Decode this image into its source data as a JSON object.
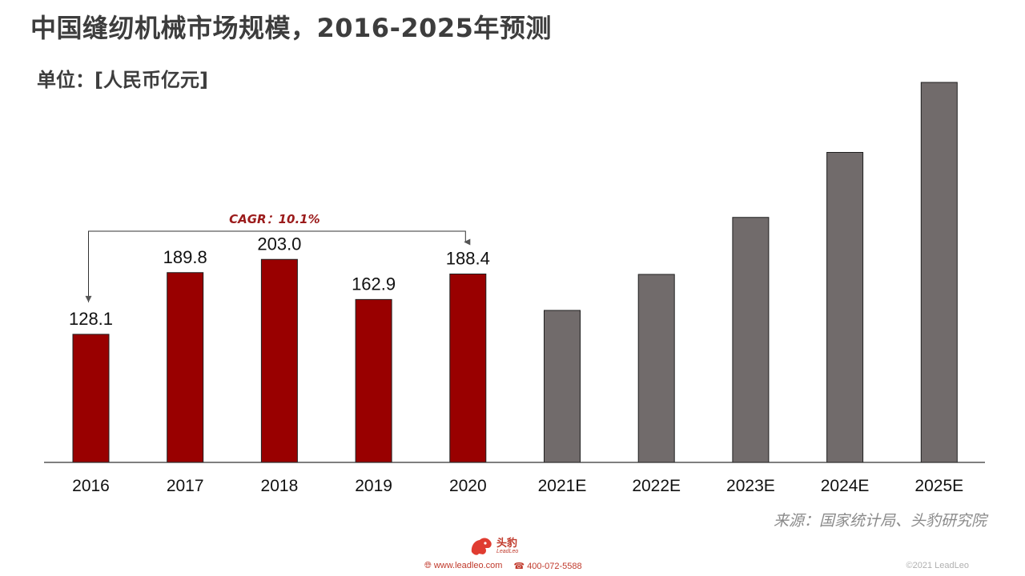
{
  "page": {
    "title": "中国缝纫机械市场规模，2016-2025年预测",
    "unit": "单位：[人民币亿元]",
    "source": "来源：国家统计局、头豹研究院"
  },
  "footer": {
    "brand": "头豹",
    "brand_sub": "LeadLeo",
    "website": "www.leadleo.com",
    "phone": "400-072-5588",
    "copyright": "©2021 LeadLeo",
    "web_icon": "globe-icon",
    "phone_icon": "phone-icon"
  },
  "chart_data": {
    "type": "bar",
    "categories": [
      "2016",
      "2017",
      "2018",
      "2019",
      "2020",
      "2021E",
      "2022E",
      "2023E",
      "2024E",
      "2025E"
    ],
    "values": [
      128.1,
      189.8,
      203.0,
      162.9,
      188.4,
      152.0,
      188.0,
      245.0,
      310.0,
      380.0
    ],
    "data_labels": [
      "128.1",
      "189.8",
      "203.0",
      "162.9",
      "188.4",
      "",
      "",
      "",
      "",
      ""
    ],
    "colors": {
      "historical": "#990000",
      "forecast": "#716b6b",
      "annotation": "#9b1b1b"
    },
    "historical_count": 5,
    "ylim": [
      0,
      380
    ],
    "grid": false,
    "annotation": {
      "text": "CAGR：10.1%",
      "from": "2016",
      "to": "2020"
    }
  }
}
